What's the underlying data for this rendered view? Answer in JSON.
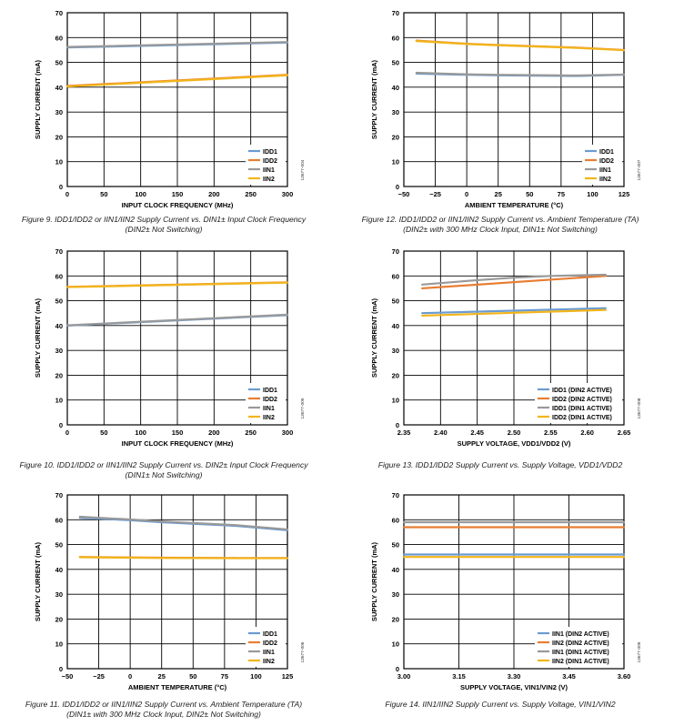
{
  "chart_data": [
    {
      "id": "fig9",
      "type": "line",
      "xlabel": "INPUT CLOCK FREQUENCY (MHz)",
      "ylabel": "SUPPLY CURRENT (mA)",
      "xlim": [
        0,
        300
      ],
      "ylim": [
        0,
        70
      ],
      "xticks": [
        "0",
        "50",
        "100",
        "150",
        "200",
        "250",
        "300"
      ],
      "yticks": [
        "0",
        "10",
        "20",
        "30",
        "40",
        "50",
        "60",
        "70"
      ],
      "grid": true,
      "legend_position": "bottom-right",
      "side_code": "13677-004",
      "series": [
        {
          "name": "IDD1",
          "color": "#6a9bd1",
          "x": [
            0,
            300
          ],
          "y": [
            56,
            58
          ]
        },
        {
          "name": "IDD2",
          "color": "#e87d33",
          "x": [
            0,
            300
          ],
          "y": [
            40.5,
            45
          ]
        },
        {
          "name": "IIN1",
          "color": "#999999",
          "x": [
            0,
            300
          ],
          "y": [
            56.2,
            58.2
          ]
        },
        {
          "name": "IIN2",
          "color": "#f2b51b",
          "x": [
            0,
            300
          ],
          "y": [
            40.3,
            44.8
          ]
        }
      ],
      "caption": [
        "Figure 9. IDD1/IDD2 or IIN1/IIN2 Supply Current vs. DIN1± Input Clock Frequency",
        "(DIN2± Not Switching)"
      ]
    },
    {
      "id": "fig12",
      "type": "line",
      "xlabel": "AMBIENT TEMPERATURE (°C)",
      "ylabel": "SUPPLY CURRENT (mA)",
      "xlim": [
        -50,
        125
      ],
      "ylim": [
        0,
        70
      ],
      "xticks": [
        "−50",
        "−25",
        "0",
        "25",
        "50",
        "75",
        "100",
        "125"
      ],
      "yticks": [
        "0",
        "10",
        "20",
        "30",
        "40",
        "50",
        "60",
        "70"
      ],
      "grid": true,
      "legend_position": "bottom-right",
      "side_code": "13677-007",
      "series": [
        {
          "name": "IDD1",
          "color": "#6a9bd1",
          "x": [
            -40,
            0,
            25,
            85,
            125
          ],
          "y": [
            45.5,
            45,
            44.8,
            44.5,
            45
          ]
        },
        {
          "name": "IDD2",
          "color": "#e87d33",
          "x": [
            -40,
            0,
            25,
            85,
            125
          ],
          "y": [
            58.8,
            57.5,
            57,
            56,
            55
          ]
        },
        {
          "name": "IIN1",
          "color": "#999999",
          "x": [
            -40,
            0,
            25,
            85,
            125
          ],
          "y": [
            45.8,
            45.2,
            45,
            44.7,
            45.1
          ]
        },
        {
          "name": "IIN2",
          "color": "#f2b51b",
          "x": [
            -40,
            0,
            25,
            85,
            125
          ],
          "y": [
            58.6,
            57.4,
            56.9,
            55.9,
            54.9
          ]
        }
      ],
      "caption": [
        "Figure 12. IDD1/IDD2 or IIN1/IIN2 Supply Current vs. Ambient Temperature (TA)",
        "(DIN2± with 300 MHz Clock Input, DIN1± Not Switching)"
      ]
    },
    {
      "id": "fig10",
      "type": "line",
      "xlabel": "INPUT CLOCK FREQUENCY (MHz)",
      "ylabel": "SUPPLY CURRENT (mA)",
      "xlim": [
        0,
        300
      ],
      "ylim": [
        0,
        70
      ],
      "xticks": [
        "0",
        "50",
        "100",
        "150",
        "200",
        "250",
        "300"
      ],
      "yticks": [
        "0",
        "10",
        "20",
        "30",
        "40",
        "50",
        "60",
        "70"
      ],
      "grid": true,
      "legend_position": "bottom-right",
      "side_code": "13677-005",
      "series": [
        {
          "name": "IDD1",
          "color": "#6a9bd1",
          "x": [
            0,
            300
          ],
          "y": [
            40,
            44.2
          ]
        },
        {
          "name": "IDD2",
          "color": "#e87d33",
          "x": [
            0,
            300
          ],
          "y": [
            55.6,
            57.4
          ]
        },
        {
          "name": "IIN1",
          "color": "#999999",
          "x": [
            0,
            300
          ],
          "y": [
            40.1,
            44.4
          ]
        },
        {
          "name": "IIN2",
          "color": "#f2b51b",
          "x": [
            0,
            300
          ],
          "y": [
            55.5,
            57.3
          ]
        }
      ],
      "caption": [
        "Figure 10. IDD1/IDD2 or IIN1/IIN2 Supply Current vs. DIN2± Input Clock Frequency",
        "(DIN1± Not Switching)"
      ]
    },
    {
      "id": "fig13",
      "type": "line",
      "xlabel": "SUPPLY VOLTAGE, VDD1/VDD2 (V)",
      "ylabel": "SUPPLY CURRENT (mA)",
      "xlim": [
        2.35,
        2.65
      ],
      "ylim": [
        0,
        70
      ],
      "xticks": [
        "2.35",
        "2.40",
        "2.45",
        "2.50",
        "2.55",
        "2.60",
        "2.65"
      ],
      "yticks": [
        "0",
        "10",
        "20",
        "30",
        "40",
        "50",
        "60",
        "70"
      ],
      "grid": true,
      "legend_position": "bottom-right",
      "side_code": "13677-008",
      "series": [
        {
          "name": "IDD1 (DIN2 ACTIVE)",
          "color": "#6a9bd1",
          "x": [
            2.375,
            2.625
          ],
          "y": [
            45,
            47
          ]
        },
        {
          "name": "IDD2 (DIN2 ACTIVE)",
          "color": "#e87d33",
          "x": [
            2.375,
            2.625
          ],
          "y": [
            55,
            60
          ]
        },
        {
          "name": "IDD1 (DIN1 ACTIVE)",
          "color": "#999999",
          "x": [
            2.375,
            2.45,
            2.5,
            2.55,
            2.625
          ],
          "y": [
            56.5,
            58.3,
            59.3,
            60,
            60.5
          ]
        },
        {
          "name": "IDD2 (DIN1 ACTIVE)",
          "color": "#f2b51b",
          "x": [
            2.375,
            2.625
          ],
          "y": [
            44,
            46.3
          ]
        }
      ],
      "caption": [
        "Figure 13. IDD1/IDD2 Supply Current vs. Supply Voltage, VDD1/VDD2",
        ""
      ]
    },
    {
      "id": "fig11",
      "type": "line",
      "xlabel": "AMBIENT TEMPERATURE (°C)",
      "ylabel": "SUPPLY CURRENT (mA)",
      "xlim": [
        -50,
        125
      ],
      "ylim": [
        0,
        70
      ],
      "xticks": [
        "−50",
        "−25",
        "0",
        "25",
        "50",
        "75",
        "100",
        "125"
      ],
      "yticks": [
        "0",
        "10",
        "20",
        "30",
        "40",
        "50",
        "60",
        "70"
      ],
      "grid": true,
      "legend_position": "bottom-right",
      "side_code": "13677-006",
      "series": [
        {
          "name": "IDD1",
          "color": "#6a9bd1",
          "x": [
            -40,
            0,
            25,
            85,
            125
          ],
          "y": [
            60.8,
            59.8,
            59,
            57.5,
            55.8
          ]
        },
        {
          "name": "IDD2",
          "color": "#e87d33",
          "x": [
            -40,
            0,
            25,
            85,
            125
          ],
          "y": [
            45,
            44.8,
            44.7,
            44.6,
            44.6
          ]
        },
        {
          "name": "IIN1",
          "color": "#999999",
          "x": [
            -40,
            0,
            25,
            85,
            125
          ],
          "y": [
            61.2,
            60.1,
            59.3,
            57.8,
            56.1
          ]
        },
        {
          "name": "IIN2",
          "color": "#f2b51b",
          "x": [
            -40,
            0,
            25,
            85,
            125
          ],
          "y": [
            44.9,
            44.7,
            44.6,
            44.5,
            44.5
          ]
        }
      ],
      "caption": [
        "Figure 11. IDD1/IDD2 or IIN1/IIN2 Supply Current vs. Ambient Temperature (TA)",
        "(DIN1± with 300 MHz Clock Input, DIN2± Not Switching)"
      ]
    },
    {
      "id": "fig14",
      "type": "line",
      "xlabel": "SUPPLY VOLTAGE, VIN1/VIN2 (V)",
      "ylabel": "SUPPLY CURRENT (mA)",
      "xlim": [
        3.0,
        3.6
      ],
      "ylim": [
        0,
        70
      ],
      "xticks": [
        "3.00",
        "3.15",
        "3.30",
        "3.45",
        "3.60"
      ],
      "yticks": [
        "0",
        "10",
        "20",
        "30",
        "40",
        "50",
        "60",
        "70"
      ],
      "grid": true,
      "legend_position": "bottom-right",
      "side_code": "13677-009",
      "series": [
        {
          "name": "IIN1 (DIN2 ACTIVE)",
          "color": "#6a9bd1",
          "x": [
            3.0,
            3.6
          ],
          "y": [
            46,
            46
          ]
        },
        {
          "name": "IIN2 (DIN2 ACTIVE)",
          "color": "#e87d33",
          "x": [
            3.0,
            3.6
          ],
          "y": [
            57,
            57
          ]
        },
        {
          "name": "IIN1 (DIN1 ACTIVE)",
          "color": "#999999",
          "x": [
            3.0,
            3.6
          ],
          "y": [
            59,
            59
          ]
        },
        {
          "name": "IIN2 (DIN1 ACTIVE)",
          "color": "#f2b51b",
          "x": [
            3.0,
            3.6
          ],
          "y": [
            45,
            45
          ]
        }
      ],
      "caption": [
        "Figure 14. IIN1/IIN2 Supply Current vs. Supply Voltage, VIN1/VIN2",
        ""
      ]
    }
  ]
}
